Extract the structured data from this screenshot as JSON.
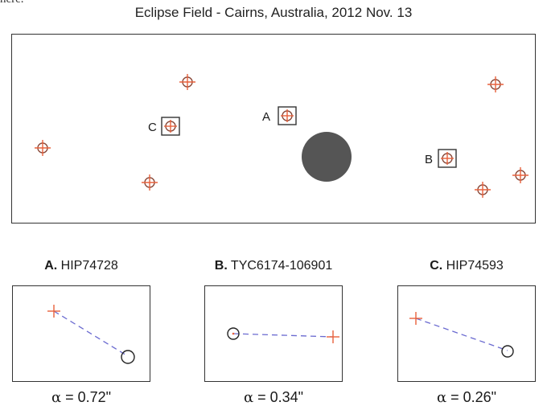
{
  "header_fragment": "here.",
  "field": {
    "title": "Eclipse Field - Cairns, Australia, 2012 Nov. 13",
    "labels": {
      "a": "A",
      "b": "B",
      "c": "C"
    }
  },
  "panels": [
    {
      "letter": "A.",
      "star": "HIP74728",
      "alpha_symbol": "α",
      "alpha_value": "=  0.72\""
    },
    {
      "letter": "B.",
      "star": "TYC6174-106901",
      "alpha_symbol": "α",
      "alpha_value": "=  0.34\""
    },
    {
      "letter": "C.",
      "star": "HIP74593",
      "alpha_symbol": "α",
      "alpha_value": "=  0.26\""
    }
  ],
  "colors": {
    "cross": "#e8603c",
    "circle": "#8a4a3a",
    "dashed_line": "#6a6ad0",
    "moon": "#555555",
    "frame": "#333333"
  }
}
